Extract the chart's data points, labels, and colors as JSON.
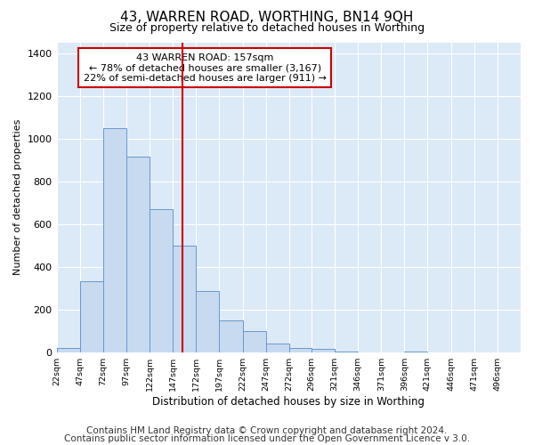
{
  "title": "43, WARREN ROAD, WORTHING, BN14 9QH",
  "subtitle": "Size of property relative to detached houses in Worthing",
  "xlabel": "Distribution of detached houses by size in Worthing",
  "ylabel": "Number of detached properties",
  "bar_color": "#c8daf0",
  "bar_edge_color": "#6699cc",
  "background_color": "#dce9f7",
  "grid_color": "#ffffff",
  "fig_bg_color": "#ffffff",
  "vline_x_index": 5,
  "vline_color": "#cc0000",
  "annotation_text": "43 WARREN ROAD: 157sqm\n← 78% of detached houses are smaller (3,167)\n22% of semi-detached houses are larger (911) →",
  "annotation_box_facecolor": "#ffffff",
  "annotation_box_edgecolor": "#cc0000",
  "bin_edges": [
    22,
    47,
    72,
    97,
    122,
    147,
    172,
    197,
    222,
    247,
    272,
    296,
    321,
    346,
    371,
    396,
    421,
    446,
    471,
    496,
    521
  ],
  "values": [
    20,
    330,
    1050,
    915,
    670,
    500,
    285,
    150,
    100,
    40,
    20,
    15,
    5,
    0,
    0,
    5,
    0,
    0,
    0,
    0
  ],
  "ylim": [
    0,
    1450
  ],
  "yticks": [
    0,
    200,
    400,
    600,
    800,
    1000,
    1200,
    1400
  ],
  "footer_line1": "Contains HM Land Registry data © Crown copyright and database right 2024.",
  "footer_line2": "Contains public sector information licensed under the Open Government Licence v 3.0.",
  "footer_fontsize": 7.5
}
